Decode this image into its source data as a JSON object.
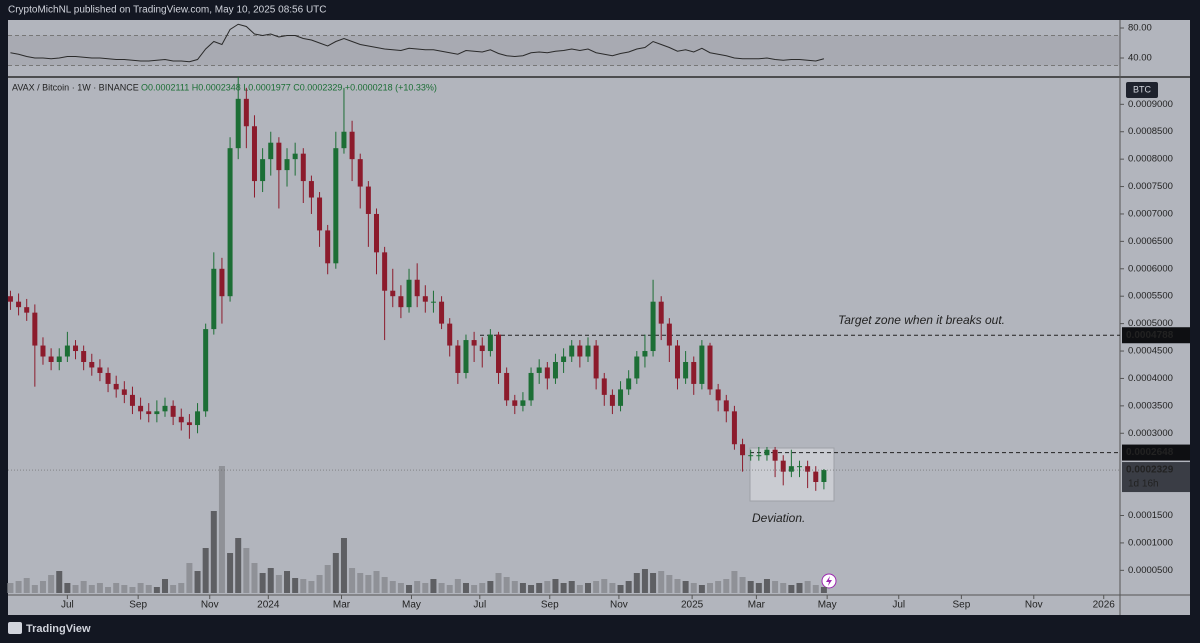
{
  "header": {
    "publisher": "CryptoMichNL published on TradingView.com, May 10, 2025 08:56 UTC",
    "brand": "TradingView"
  },
  "chart_data": {
    "type": "candlestick",
    "symbol": "AVAX / Bitcoin · 1W · BINANCE",
    "ohlc_text": "O0.0002111 H0.0002348 L0.0001977 C0.0002329 +0.0000218 (+10.33%)",
    "currency": "BTC",
    "countdown": "1d 16h",
    "annotations": [
      "Target zone when it breaks out.",
      "Deviation."
    ],
    "levels": [
      0.0004788,
      0.0002648
    ],
    "up_color": "#1c6e35",
    "down_color": "#8c1b2c",
    "volume_up_color": "#5e5f63",
    "volume_down_color": "#8f9197",
    "rsi_color": "#2a2a2a",
    "grid": false,
    "open": [
      0.00055,
      0.00054,
      0.00053,
      0.00052,
      0.00046,
      0.00044,
      0.00043,
      0.00044,
      0.00046,
      0.00045,
      0.00043,
      0.00042,
      0.00041,
      0.00039,
      0.00038,
      0.00037,
      0.00035,
      0.00034,
      0.000335,
      0.00034,
      0.00035,
      0.00033,
      0.00032,
      0.000315,
      0.00034,
      0.00049,
      0.0006,
      0.00055,
      0.00082,
      0.00091,
      0.00086,
      0.00076,
      0.0008,
      0.00083,
      0.00078,
      0.0008,
      0.00081,
      0.00076,
      0.00073,
      0.00067,
      0.00061,
      0.00082,
      0.00085,
      0.0008,
      0.00075,
      0.0007,
      0.00063,
      0.00056,
      0.00055,
      0.00053,
      0.00058,
      0.00055,
      0.00054,
      0.00054,
      0.0005,
      0.00046,
      0.00041,
      0.00047,
      0.00046,
      0.00045,
      0.00048,
      0.00041,
      0.00036,
      0.00035,
      0.00036,
      0.00041,
      0.00042,
      0.0004,
      0.00043,
      0.00044,
      0.00046,
      0.00044,
      0.00046,
      0.0004,
      0.00037,
      0.00035,
      0.00038,
      0.0004,
      0.00044,
      0.00045,
      0.00054,
      0.0005,
      0.00046,
      0.0004,
      0.00043,
      0.00039,
      0.00046,
      0.00038,
      0.00036,
      0.00034,
      0.00028,
      0.00026,
      0.00026,
      0.00026,
      0.00027,
      0.00025,
      0.00023,
      0.00024,
      0.00024,
      0.00023,
      0.0002111
    ],
    "high": [
      0.00056,
      0.000555,
      0.000545,
      0.000535,
      0.000475,
      0.000455,
      0.000455,
      0.000485,
      0.00047,
      0.00046,
      0.000445,
      0.000435,
      0.00042,
      0.000405,
      0.000395,
      0.000385,
      0.000365,
      0.000355,
      0.00036,
      0.000365,
      0.00036,
      0.000345,
      0.000335,
      0.000355,
      0.0005,
      0.00063,
      0.00062,
      0.00084,
      0.00095,
      0.00093,
      0.00088,
      0.00082,
      0.00085,
      0.00084,
      0.00082,
      0.00083,
      0.00082,
      0.00077,
      0.00074,
      0.00068,
      0.00085,
      0.00093,
      0.00087,
      0.00081,
      0.00076,
      0.00071,
      0.00064,
      0.0006,
      0.00057,
      0.0006,
      0.00061,
      0.00057,
      0.00056,
      0.00055,
      0.00051,
      0.00047,
      0.00048,
      0.000485,
      0.000475,
      0.00049,
      0.000485,
      0.00042,
      0.00037,
      0.000375,
      0.00042,
      0.000435,
      0.00043,
      0.000445,
      0.000455,
      0.00047,
      0.00047,
      0.000475,
      0.00047,
      0.00041,
      0.00038,
      0.000395,
      0.000415,
      0.00045,
      0.00048,
      0.00058,
      0.00055,
      0.00051,
      0.00047,
      0.00045,
      0.00044,
      0.00047,
      0.000465,
      0.00039,
      0.00037,
      0.00035,
      0.00029,
      0.00027,
      0.000275,
      0.000275,
      0.000275,
      0.00026,
      0.00027,
      0.00025,
      0.00025,
      0.00024,
      0.0002348
    ],
    "low": [
      0.000525,
      0.000515,
      0.000505,
      0.000385,
      0.000425,
      0.000415,
      0.000415,
      0.00043,
      0.000435,
      0.000415,
      0.000405,
      0.000395,
      0.000375,
      0.000365,
      0.000355,
      0.000335,
      0.000325,
      0.00032,
      0.00032,
      0.00033,
      0.000315,
      0.000305,
      0.00029,
      0.0003,
      0.00033,
      0.00048,
      0.0005,
      0.00054,
      0.0008,
      0.00082,
      0.00073,
      0.00074,
      0.00077,
      0.00071,
      0.00075,
      0.00077,
      0.00072,
      0.0007,
      0.00064,
      0.00059,
      0.0006,
      0.00081,
      0.00076,
      0.00071,
      0.00064,
      0.00059,
      0.00047,
      0.00053,
      0.00051,
      0.00052,
      0.00053,
      0.00052,
      0.00052,
      0.00049,
      0.00044,
      0.00039,
      0.0004,
      0.00043,
      0.00042,
      0.00044,
      0.00039,
      0.00035,
      0.000335,
      0.00034,
      0.00035,
      0.00039,
      0.00038,
      0.00039,
      0.00041,
      0.00043,
      0.00042,
      0.00043,
      0.00038,
      0.00035,
      0.000335,
      0.00034,
      0.00037,
      0.00039,
      0.00042,
      0.00044,
      0.00047,
      0.00043,
      0.00038,
      0.00039,
      0.00037,
      0.00038,
      0.00037,
      0.00034,
      0.00032,
      0.00027,
      0.00023,
      0.00025,
      0.00025,
      0.00025,
      0.00022,
      0.000205,
      0.00022,
      0.00022,
      0.0002,
      0.000195,
      0.0001977
    ],
    "close": [
      0.00054,
      0.00053,
      0.00052,
      0.00046,
      0.00044,
      0.00043,
      0.00044,
      0.00046,
      0.00045,
      0.00043,
      0.00042,
      0.00041,
      0.00039,
      0.00038,
      0.00037,
      0.00035,
      0.00034,
      0.000335,
      0.00034,
      0.00035,
      0.00033,
      0.00032,
      0.000315,
      0.00034,
      0.00049,
      0.0006,
      0.00055,
      0.00082,
      0.00091,
      0.00086,
      0.00076,
      0.0008,
      0.00083,
      0.00078,
      0.0008,
      0.00081,
      0.00076,
      0.00073,
      0.00067,
      0.00061,
      0.00082,
      0.00085,
      0.0008,
      0.00075,
      0.0007,
      0.00063,
      0.00056,
      0.00055,
      0.00053,
      0.00058,
      0.00055,
      0.00054,
      0.00054,
      0.0005,
      0.00046,
      0.00041,
      0.00047,
      0.00046,
      0.00045,
      0.00048,
      0.00041,
      0.00036,
      0.00035,
      0.00036,
      0.00041,
      0.00042,
      0.0004,
      0.00043,
      0.00044,
      0.00046,
      0.00044,
      0.00046,
      0.0004,
      0.00037,
      0.00035,
      0.00038,
      0.0004,
      0.00044,
      0.00045,
      0.00054,
      0.0005,
      0.00046,
      0.0004,
      0.00043,
      0.00039,
      0.00046,
      0.00038,
      0.00036,
      0.00034,
      0.00028,
      0.00026,
      0.00026,
      0.00026,
      0.00027,
      0.00025,
      0.00023,
      0.00024,
      0.00024,
      0.00023,
      0.0002111,
      0.0002329
    ],
    "volume": [
      10,
      12,
      15,
      8,
      12,
      18,
      22,
      10,
      8,
      12,
      8,
      10,
      6,
      10,
      8,
      6,
      10,
      8,
      6,
      14,
      8,
      10,
      30,
      22,
      45,
      82,
      127,
      40,
      55,
      45,
      30,
      20,
      25,
      18,
      22,
      15,
      14,
      12,
      18,
      28,
      40,
      55,
      25,
      20,
      18,
      22,
      16,
      12,
      10,
      8,
      12,
      10,
      14,
      10,
      8,
      14,
      10,
      8,
      10,
      12,
      20,
      16,
      12,
      10,
      8,
      10,
      12,
      14,
      10,
      12,
      8,
      10,
      12,
      14,
      10,
      8,
      12,
      20,
      24,
      20,
      22,
      18,
      14,
      12,
      10,
      8,
      10,
      12,
      14,
      22,
      16,
      12,
      10,
      14,
      12,
      10,
      8,
      10,
      12,
      8,
      6
    ],
    "rsi": [
      47,
      45,
      42,
      40,
      40,
      39,
      40,
      42,
      42,
      41,
      40,
      40,
      39,
      38,
      38,
      37,
      36,
      36,
      37,
      38,
      36,
      36,
      35,
      38,
      52,
      62,
      58,
      78,
      85,
      82,
      72,
      70,
      72,
      68,
      70,
      70,
      66,
      64,
      60,
      56,
      62,
      66,
      62,
      58,
      56,
      54,
      52,
      51,
      50,
      53,
      52,
      51,
      51,
      49,
      47,
      45,
      50,
      49,
      48,
      51,
      46,
      43,
      42,
      43,
      47,
      48,
      47,
      49,
      50,
      52,
      50,
      52,
      47,
      45,
      43,
      46,
      48,
      52,
      54,
      62,
      58,
      54,
      49,
      51,
      48,
      53,
      47,
      45,
      43,
      40,
      39,
      39,
      39,
      40,
      38,
      37,
      38,
      38,
      37,
      36,
      39
    ],
    "rsi_bands": [
      30,
      70
    ],
    "xlim": [
      -0.3,
      136.4
    ],
    "xticks": [
      {
        "value": 7.0,
        "label": "Jul"
      },
      {
        "value": 15.7,
        "label": "Sep"
      },
      {
        "value": 24.5,
        "label": "Nov"
      },
      {
        "value": 31.7,
        "label": "2024"
      },
      {
        "value": 40.7,
        "label": "Mar"
      },
      {
        "value": 49.3,
        "label": "May"
      },
      {
        "value": 57.7,
        "label": "Jul"
      },
      {
        "value": 66.3,
        "label": "Sep"
      },
      {
        "value": 74.8,
        "label": "Nov"
      },
      {
        "value": 83.8,
        "label": "2025"
      },
      {
        "value": 91.7,
        "label": "Mar"
      },
      {
        "value": 100.4,
        "label": "May"
      },
      {
        "value": 109.2,
        "label": "Jul"
      },
      {
        "value": 116.9,
        "label": "Sep"
      },
      {
        "value": 125.8,
        "label": "Nov"
      },
      {
        "value": 134.4,
        "label": "2026"
      }
    ],
    "ylim": [
      5e-06,
      0.000948
    ],
    "yticks": [
      {
        "value": 0.0009,
        "label": "0.0009000"
      },
      {
        "value": 0.00085,
        "label": "0.0008500"
      },
      {
        "value": 0.0008,
        "label": "0.0008000"
      },
      {
        "value": 0.00075,
        "label": "0.0007500"
      },
      {
        "value": 0.0007,
        "label": "0.0007000"
      },
      {
        "value": 0.00065,
        "label": "0.0006500"
      },
      {
        "value": 0.0006,
        "label": "0.0006000"
      },
      {
        "value": 0.00055,
        "label": "0.0005500"
      },
      {
        "value": 0.0005,
        "label": "0.0005000"
      },
      {
        "value": 0.00045,
        "label": "0.0004500"
      },
      {
        "value": 0.0004,
        "label": "0.0004000"
      },
      {
        "value": 0.00035,
        "label": "0.0003500"
      },
      {
        "value": 0.0003,
        "label": "0.0003000"
      },
      {
        "value": 0.00015,
        "label": "0.0001500"
      },
      {
        "value": 0.0001,
        "label": "0.0001000"
      },
      {
        "value": 5e-05,
        "label": "0.0000500"
      }
    ],
    "y2lim": [
      16,
      88
    ],
    "y2ticks": [
      {
        "value": 80,
        "label": "80.00"
      },
      {
        "value": 40,
        "label": "40.00"
      }
    ]
  }
}
